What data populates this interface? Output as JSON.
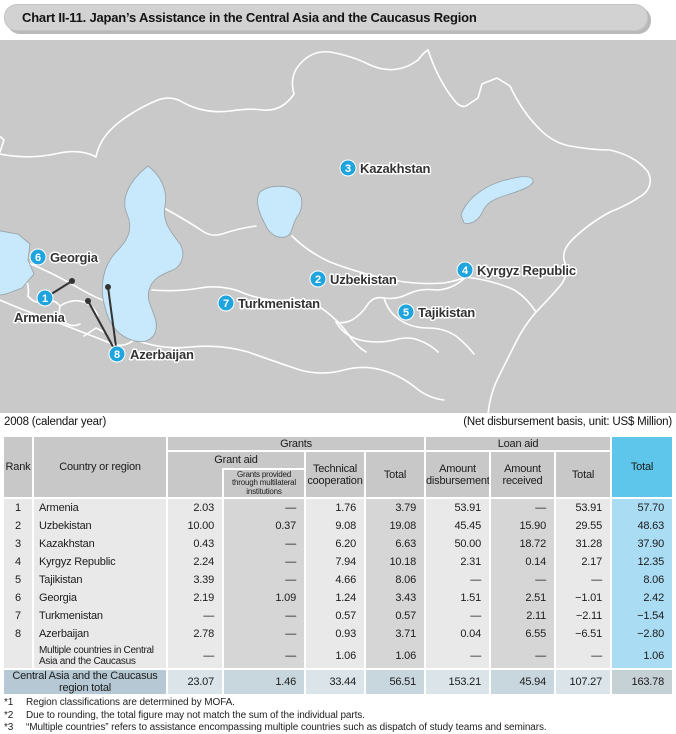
{
  "title": "Chart II-11. Japan’s Assistance in the Central Asia and the Caucasus Region",
  "map": {
    "markers": [
      {
        "num": "1",
        "label": "Armenia"
      },
      {
        "num": "2",
        "label": "Uzbekistan"
      },
      {
        "num": "3",
        "label": "Kazakhstan"
      },
      {
        "num": "4",
        "label": "Kyrgyz Republic"
      },
      {
        "num": "5",
        "label": "Tajikistan"
      },
      {
        "num": "6",
        "label": "Georgia"
      },
      {
        "num": "7",
        "label": "Turkmenistan"
      },
      {
        "num": "8",
        "label": "Azerbaijan"
      }
    ]
  },
  "table": {
    "year_note": "2008 (calendar year)",
    "unit_note": "(Net disbursement basis, unit: US$ Million)",
    "headers": {
      "rank": "Rank",
      "country": "Country or region",
      "grants": "Grants",
      "grant_aid": "Grant aid",
      "multilateral": "Grants provided through multilateral institutions",
      "tech": "Technical cooperation",
      "grants_total": "Total",
      "loan_aid": "Loan aid",
      "disb": "Amount disbursement",
      "recv": "Amount received",
      "loan_total": "Total",
      "total": "Total"
    },
    "rows": [
      {
        "rank": "1",
        "country": "Armenia",
        "grant_aid": "2.03",
        "multilateral": "—",
        "tech": "1.76",
        "grants_total": "3.79",
        "disb": "53.91",
        "recv": "—",
        "loan_total": "53.91",
        "total": "57.70"
      },
      {
        "rank": "2",
        "country": "Uzbekistan",
        "grant_aid": "10.00",
        "multilateral": "0.37",
        "tech": "9.08",
        "grants_total": "19.08",
        "disb": "45.45",
        "recv": "15.90",
        "loan_total": "29.55",
        "total": "48.63"
      },
      {
        "rank": "3",
        "country": "Kazakhstan",
        "grant_aid": "0.43",
        "multilateral": "—",
        "tech": "6.20",
        "grants_total": "6.63",
        "disb": "50.00",
        "recv": "18.72",
        "loan_total": "31.28",
        "total": "37.90"
      },
      {
        "rank": "4",
        "country": "Kyrgyz Republic",
        "grant_aid": "2.24",
        "multilateral": "—",
        "tech": "7.94",
        "grants_total": "10.18",
        "disb": "2.31",
        "recv": "0.14",
        "loan_total": "2.17",
        "total": "12.35"
      },
      {
        "rank": "5",
        "country": "Tajikistan",
        "grant_aid": "3.39",
        "multilateral": "—",
        "tech": "4.66",
        "grants_total": "8.06",
        "disb": "—",
        "recv": "—",
        "loan_total": "—",
        "total": "8.06"
      },
      {
        "rank": "6",
        "country": "Georgia",
        "grant_aid": "2.19",
        "multilateral": "1.09",
        "tech": "1.24",
        "grants_total": "3.43",
        "disb": "1.51",
        "recv": "2.51",
        "loan_total": "−1.01",
        "total": "2.42"
      },
      {
        "rank": "7",
        "country": "Turkmenistan",
        "grant_aid": "—",
        "multilateral": "—",
        "tech": "0.57",
        "grants_total": "0.57",
        "disb": "—",
        "recv": "2.11",
        "loan_total": "−2.11",
        "total": "−1.54"
      },
      {
        "rank": "8",
        "country": "Azerbaijan",
        "grant_aid": "2.78",
        "multilateral": "—",
        "tech": "0.93",
        "grants_total": "3.71",
        "disb": "0.04",
        "recv": "6.55",
        "loan_total": "−6.51",
        "total": "−2.80"
      },
      {
        "rank": "",
        "country": "Multiple countries in Central Asia and the Caucasus",
        "grant_aid": "—",
        "multilateral": "—",
        "tech": "1.06",
        "grants_total": "1.06",
        "disb": "—",
        "recv": "—",
        "loan_total": "—",
        "total": "1.06"
      }
    ],
    "total_row": {
      "label": "Central Asia and the Caucasus region total",
      "grant_aid": "23.07",
      "multilateral": "1.46",
      "tech": "33.44",
      "grants_total": "56.51",
      "disb": "153.21",
      "recv": "45.94",
      "loan_total": "107.27",
      "total": "163.78"
    }
  },
  "footnotes": [
    {
      "marker": "*1",
      "text": "Region classifications are determined by MOFA."
    },
    {
      "marker": "*2",
      "text": "Due to rounding, the total figure may not match the sum of the individual parts."
    },
    {
      "marker": "*3",
      "text": "“Multiple countries” refers to assistance encompassing multiple countries such as dispatch of study teams and seminars."
    }
  ]
}
